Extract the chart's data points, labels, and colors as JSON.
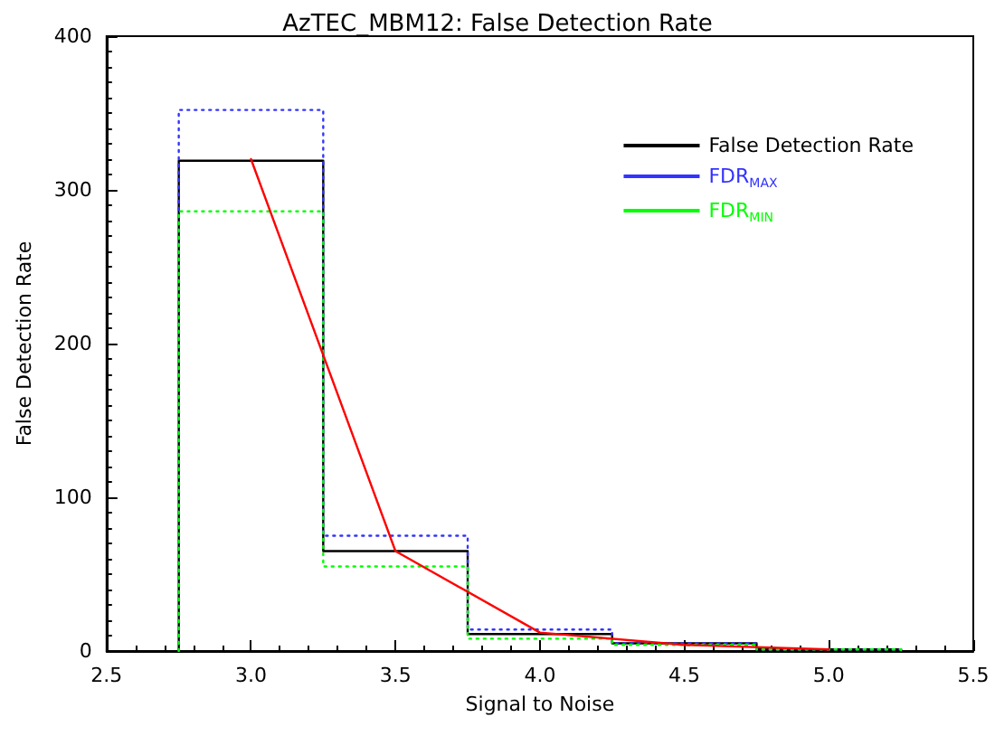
{
  "chart_data": {
    "type": "histogram",
    "title": "AzTEC_MBM12: False Detection Rate",
    "xlabel": "Signal to Noise",
    "ylabel": "False Detection Rate",
    "bins": [
      2.75,
      3.25,
      3.75,
      4.25,
      4.75,
      5.25
    ],
    "series": [
      {
        "name": "False Detection Rate",
        "color": "#000000",
        "values": [
          319,
          65,
          11,
          5,
          1
        ],
        "line_style": "solid"
      },
      {
        "name": "FDR$_{MAX}$",
        "color": "#3333ff",
        "values": [
          352,
          75,
          14,
          5,
          1
        ],
        "line_style": "dotted"
      },
      {
        "name": "FDR$_{MIN}$",
        "color": "#00ff00",
        "values": [
          286,
          55,
          8,
          4,
          1
        ],
        "line_style": "dotted"
      },
      {
        "type": "line",
        "color": "#ff0000",
        "x": [
          3.0,
          3.5,
          4.0,
          4.5,
          5.0
        ],
        "values": [
          320,
          65,
          12,
          4,
          1
        ],
        "line_style": "solid"
      }
    ],
    "xlim": [
      2.5,
      5.5
    ],
    "xticks": [
      {
        "value": 2.5,
        "label": "2.5"
      },
      {
        "value": 3,
        "label": "3.0"
      },
      {
        "value": 3.5,
        "label": "3.5"
      },
      {
        "value": 4,
        "label": "4.0"
      },
      {
        "value": 4.5,
        "label": "4.5"
      },
      {
        "value": 5,
        "label": "5.0"
      },
      {
        "value": 5.5,
        "label": "5.5"
      }
    ],
    "ylim": [
      0,
      400
    ],
    "yticks": [
      0,
      100,
      200,
      300,
      400
    ],
    "grid": false,
    "legend": "top right",
    "marker": "none"
  }
}
